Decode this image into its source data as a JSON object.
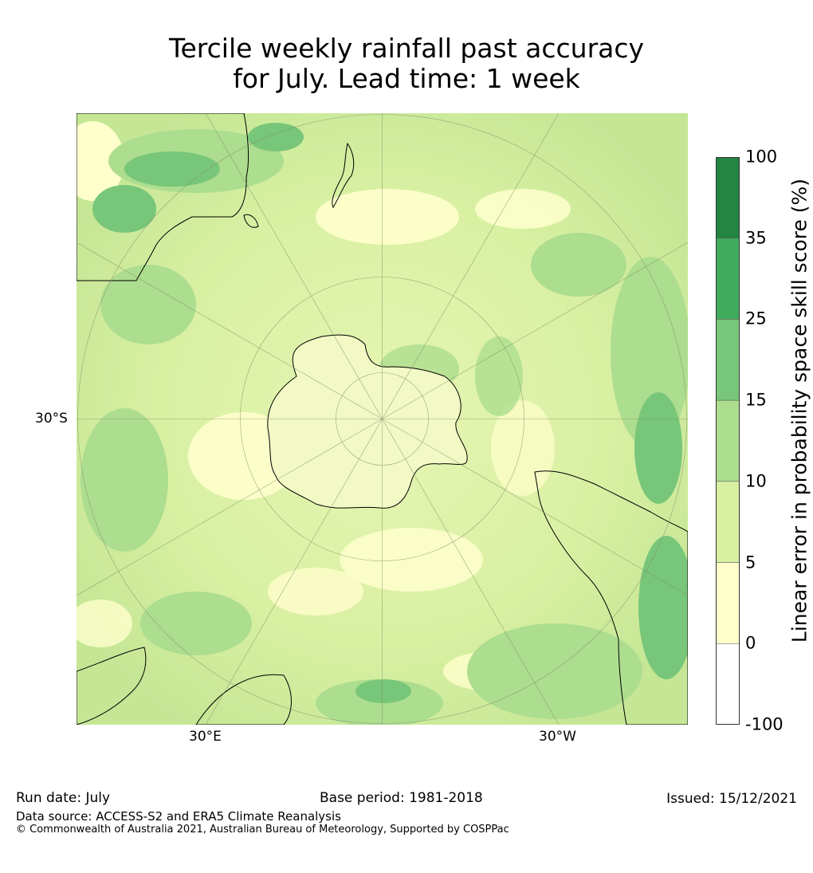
{
  "title": {
    "line1": "Tercile weekly rainfall past accuracy",
    "line2": "for July. Lead time: 1 week"
  },
  "map": {
    "projection": "south-polar-stereographic",
    "labels": {
      "lat_left": "30°S",
      "lon_bottom_left": "30°E",
      "lon_bottom_right": "30°W"
    },
    "land_outline_color": "#000000",
    "graticule_color": "#7f8f6a"
  },
  "colorbar": {
    "label": "Linear error in probability space skill score (%)",
    "ticks": [
      "100",
      "35",
      "25",
      "15",
      "10",
      "5",
      "0",
      "-100"
    ],
    "bins": [
      {
        "range": "35 to 100",
        "color": "#238443"
      },
      {
        "range": "25 to 35",
        "color": "#41ab5d"
      },
      {
        "range": "15 to 25",
        "color": "#78c679"
      },
      {
        "range": "10 to 15",
        "color": "#addd8e"
      },
      {
        "range": "5 to 10",
        "color": "#d9f0a3"
      },
      {
        "range": "0 to 5",
        "color": "#ffffcc"
      },
      {
        "range": "-100 to 0",
        "color": "#ffffff"
      }
    ]
  },
  "footer": {
    "run_date": "Run date: July",
    "base_period": "Base period: 1981-2018",
    "issued": "Issued: 15/12/2021",
    "data_source": "Data source: ACCESS-S2 and ERA5 Climate Reanalysis",
    "copyright": "© Commonwealth of Australia 2021, Australian Bureau of Meteorology, Supported by COSPPac"
  }
}
